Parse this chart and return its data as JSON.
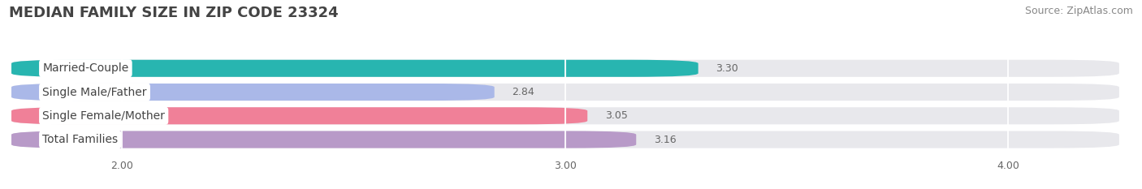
{
  "title": "MEDIAN FAMILY SIZE IN ZIP CODE 23324",
  "source": "Source: ZipAtlas.com",
  "categories": [
    "Married-Couple",
    "Single Male/Father",
    "Single Female/Mother",
    "Total Families"
  ],
  "values": [
    3.3,
    2.84,
    3.05,
    3.16
  ],
  "bar_colors": [
    "#28b5b0",
    "#aab8e8",
    "#f08098",
    "#b89ac8"
  ],
  "xlim": [
    1.75,
    4.25
  ],
  "xmin": 1.75,
  "xmax": 4.25,
  "xticks": [
    2.0,
    3.0,
    4.0
  ],
  "xtick_labels": [
    "2.00",
    "3.00",
    "4.00"
  ],
  "bar_height": 0.72,
  "background_color": "#ffffff",
  "bar_background_color": "#e8e8ec",
  "title_fontsize": 13,
  "source_fontsize": 9,
  "label_fontsize": 10,
  "value_fontsize": 9,
  "tick_fontsize": 9,
  "grid_color": "#cccccc",
  "label_box_color": "#ffffff",
  "label_text_color": "#444444",
  "value_text_color": "#666666",
  "title_color": "#444444",
  "source_color": "#888888"
}
